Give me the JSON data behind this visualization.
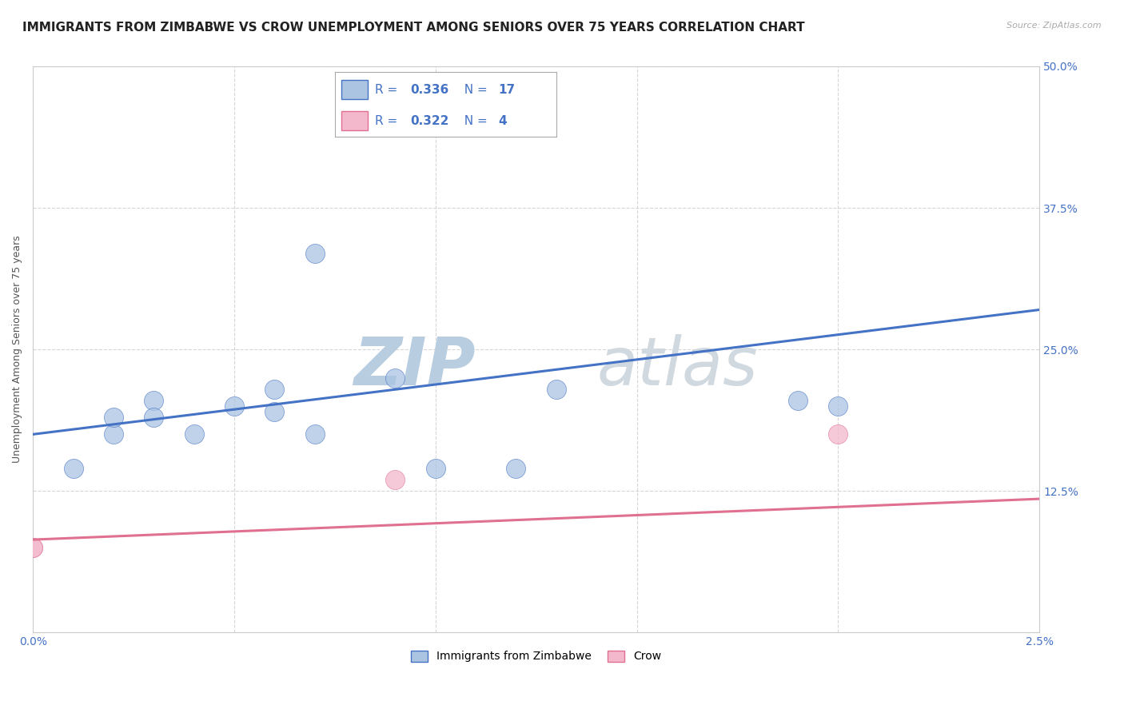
{
  "title": "IMMIGRANTS FROM ZIMBABWE VS CROW UNEMPLOYMENT AMONG SENIORS OVER 75 YEARS CORRELATION CHART",
  "source": "Source: ZipAtlas.com",
  "ylabel": "Unemployment Among Seniors over 75 years",
  "watermark_zip": "ZIP",
  "watermark_atlas": "atlas",
  "xlim": [
    0.0,
    0.025
  ],
  "ylim": [
    0.0,
    0.5
  ],
  "xticks": [
    0.0,
    0.005,
    0.01,
    0.015,
    0.02,
    0.025
  ],
  "xticklabels": [
    "0.0%",
    "",
    "",
    "",
    "",
    "2.5%"
  ],
  "yticks": [
    0.0,
    0.125,
    0.25,
    0.375,
    0.5
  ],
  "yticklabels_right": [
    "",
    "12.5%",
    "25.0%",
    "37.5%",
    "50.0%"
  ],
  "blue_label": "Immigrants from Zimbabwe",
  "pink_label": "Crow",
  "blue_R": "0.336",
  "blue_N": "17",
  "pink_R": "0.322",
  "pink_N": "4",
  "blue_color": "#aac4e2",
  "blue_line_color": "#4472c4",
  "pink_color": "#f4b8cc",
  "pink_line_color": "#e07090",
  "blue_scatter_x": [
    0.001,
    0.002,
    0.002,
    0.003,
    0.003,
    0.004,
    0.005,
    0.006,
    0.006,
    0.007,
    0.007,
    0.009,
    0.01,
    0.012,
    0.013,
    0.019,
    0.02
  ],
  "blue_scatter_y": [
    0.145,
    0.175,
    0.19,
    0.205,
    0.19,
    0.175,
    0.2,
    0.215,
    0.195,
    0.335,
    0.175,
    0.225,
    0.145,
    0.145,
    0.215,
    0.205,
    0.2
  ],
  "pink_scatter_x": [
    0.0,
    0.0,
    0.009,
    0.02
  ],
  "pink_scatter_y": [
    0.075,
    0.075,
    0.135,
    0.175
  ],
  "blue_trend_x": [
    0.0,
    0.025
  ],
  "blue_trend_y": [
    0.175,
    0.285
  ],
  "pink_trend_x": [
    0.0,
    0.025
  ],
  "pink_trend_y": [
    0.082,
    0.118
  ],
  "background_color": "#ffffff",
  "grid_color": "#cccccc",
  "title_fontsize": 11,
  "axis_label_fontsize": 9,
  "tick_fontsize": 10,
  "legend_fontsize": 11,
  "watermark_fontsize_zip": 60,
  "watermark_fontsize_atlas": 60,
  "watermark_color": "#ccd8e8",
  "legend_text_color": "#4472c4",
  "right_tick_color": "#4472c4"
}
